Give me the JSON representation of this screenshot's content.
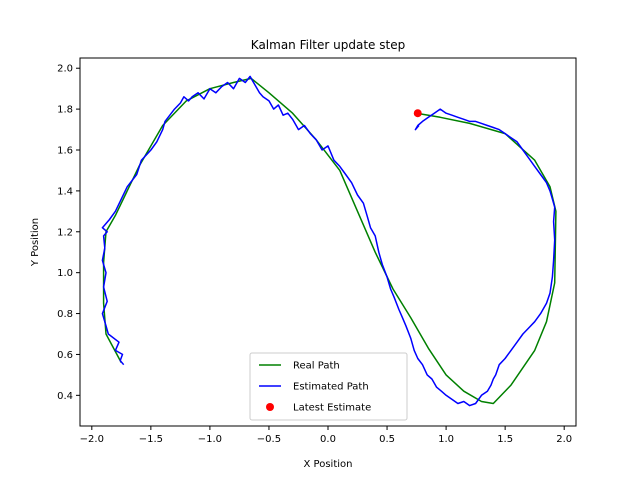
{
  "chart_data": {
    "type": "line",
    "title": "Kalman Filter update step",
    "xlabel": "X Position",
    "ylabel": "Y Position",
    "xlim": [
      -2.1,
      2.1
    ],
    "ylim": [
      0.25,
      2.05
    ],
    "xticks": [
      -2.0,
      -1.5,
      -1.0,
      -0.5,
      0.0,
      0.5,
      1.0,
      1.5,
      2.0
    ],
    "xtick_labels": [
      "−2.0",
      "−1.5",
      "−1.0",
      "−0.5",
      "0.0",
      "0.5",
      "1.0",
      "1.5",
      "2.0"
    ],
    "yticks": [
      0.4,
      0.6,
      0.8,
      1.0,
      1.2,
      1.4,
      1.6,
      1.8,
      2.0
    ],
    "ytick_labels": [
      "0.4",
      "0.6",
      "0.8",
      "1.0",
      "1.2",
      "1.4",
      "1.6",
      "1.8",
      "2.0"
    ],
    "grid": false,
    "legend_position": "bottom-center",
    "series": [
      {
        "name": "Real Path",
        "type": "line",
        "color": "#008000",
        "x": [
          -1.75,
          -1.88,
          -1.9,
          -1.9,
          -1.88,
          -1.8,
          -1.6,
          -1.4,
          -1.2,
          -1.0,
          -0.8,
          -0.65,
          -0.5,
          -0.3,
          -0.1,
          0.1,
          0.25,
          0.4,
          0.55,
          0.7,
          0.85,
          1.0,
          1.15,
          1.3,
          1.4,
          1.55,
          1.75,
          1.85,
          1.92,
          1.93,
          1.88,
          1.75,
          1.5,
          1.2,
          0.95,
          0.75
        ],
        "y": [
          0.56,
          0.7,
          0.85,
          1.05,
          1.2,
          1.28,
          1.52,
          1.72,
          1.84,
          1.9,
          1.93,
          1.95,
          1.88,
          1.78,
          1.65,
          1.5,
          1.3,
          1.1,
          0.92,
          0.78,
          0.63,
          0.5,
          0.42,
          0.37,
          0.36,
          0.45,
          0.62,
          0.76,
          0.95,
          1.3,
          1.42,
          1.55,
          1.68,
          1.73,
          1.76,
          1.78
        ]
      },
      {
        "name": "Estimated Path",
        "type": "line",
        "color": "#0000ff",
        "x": [
          -1.73,
          -1.76,
          -1.74,
          -1.8,
          -1.77,
          -1.86,
          -1.88,
          -1.91,
          -1.87,
          -1.9,
          -1.88,
          -1.91,
          -1.89,
          -1.9,
          -1.87,
          -1.91,
          -1.85,
          -1.8,
          -1.75,
          -1.7,
          -1.62,
          -1.58,
          -1.5,
          -1.45,
          -1.4,
          -1.38,
          -1.3,
          -1.25,
          -1.22,
          -1.18,
          -1.15,
          -1.1,
          -1.05,
          -1.0,
          -0.95,
          -0.9,
          -0.85,
          -0.8,
          -0.75,
          -0.7,
          -0.66,
          -0.64,
          -0.62,
          -0.58,
          -0.55,
          -0.5,
          -0.46,
          -0.42,
          -0.38,
          -0.34,
          -0.3,
          -0.25,
          -0.2,
          -0.15,
          -0.1,
          -0.05,
          0.0,
          0.05,
          0.1,
          0.15,
          0.2,
          0.25,
          0.3,
          0.33,
          0.36,
          0.4,
          0.43,
          0.46,
          0.5,
          0.53,
          0.56,
          0.6,
          0.63,
          0.66,
          0.7,
          0.73,
          0.76,
          0.8,
          0.84,
          0.88,
          0.92,
          0.96,
          1.0,
          1.05,
          1.1,
          1.15,
          1.2,
          1.25,
          1.3,
          1.35,
          1.38,
          1.4,
          1.42,
          1.45,
          1.5,
          1.55,
          1.6,
          1.65,
          1.7,
          1.75,
          1.8,
          1.85,
          1.88,
          1.9,
          1.91,
          1.92,
          1.91,
          1.92,
          1.9,
          1.88,
          1.85,
          1.8,
          1.75,
          1.7,
          1.65,
          1.6,
          1.55,
          1.5,
          1.45,
          1.4,
          1.35,
          1.3,
          1.25,
          1.2,
          1.15,
          1.1,
          1.05,
          1.0,
          0.95,
          0.9,
          0.85,
          0.8,
          0.76,
          0.74,
          0.77
        ],
        "y": [
          0.55,
          0.57,
          0.6,
          0.62,
          0.66,
          0.7,
          0.74,
          0.8,
          0.86,
          0.93,
          1.0,
          1.06,
          1.12,
          1.18,
          1.2,
          1.22,
          1.26,
          1.3,
          1.36,
          1.42,
          1.48,
          1.55,
          1.6,
          1.64,
          1.7,
          1.74,
          1.8,
          1.83,
          1.86,
          1.84,
          1.86,
          1.88,
          1.85,
          1.9,
          1.88,
          1.91,
          1.93,
          1.9,
          1.95,
          1.93,
          1.96,
          1.94,
          1.92,
          1.88,
          1.86,
          1.84,
          1.8,
          1.82,
          1.77,
          1.78,
          1.75,
          1.7,
          1.72,
          1.68,
          1.65,
          1.6,
          1.62,
          1.55,
          1.52,
          1.48,
          1.44,
          1.38,
          1.34,
          1.28,
          1.22,
          1.18,
          1.1,
          1.04,
          0.98,
          0.92,
          0.88,
          0.82,
          0.78,
          0.74,
          0.68,
          0.62,
          0.58,
          0.55,
          0.5,
          0.48,
          0.44,
          0.42,
          0.4,
          0.38,
          0.36,
          0.37,
          0.35,
          0.36,
          0.4,
          0.42,
          0.45,
          0.48,
          0.5,
          0.55,
          0.58,
          0.62,
          0.66,
          0.7,
          0.73,
          0.76,
          0.8,
          0.85,
          0.9,
          0.98,
          1.06,
          1.16,
          1.25,
          1.32,
          1.36,
          1.4,
          1.44,
          1.48,
          1.52,
          1.56,
          1.6,
          1.64,
          1.66,
          1.68,
          1.7,
          1.71,
          1.72,
          1.73,
          1.74,
          1.74,
          1.75,
          1.76,
          1.77,
          1.78,
          1.8,
          1.78,
          1.76,
          1.74,
          1.72,
          1.7,
          1.72
        ]
      },
      {
        "name": "Latest Estimate",
        "type": "scatter",
        "color": "#ff0000",
        "x": [
          0.76
        ],
        "y": [
          1.78
        ]
      }
    ]
  }
}
